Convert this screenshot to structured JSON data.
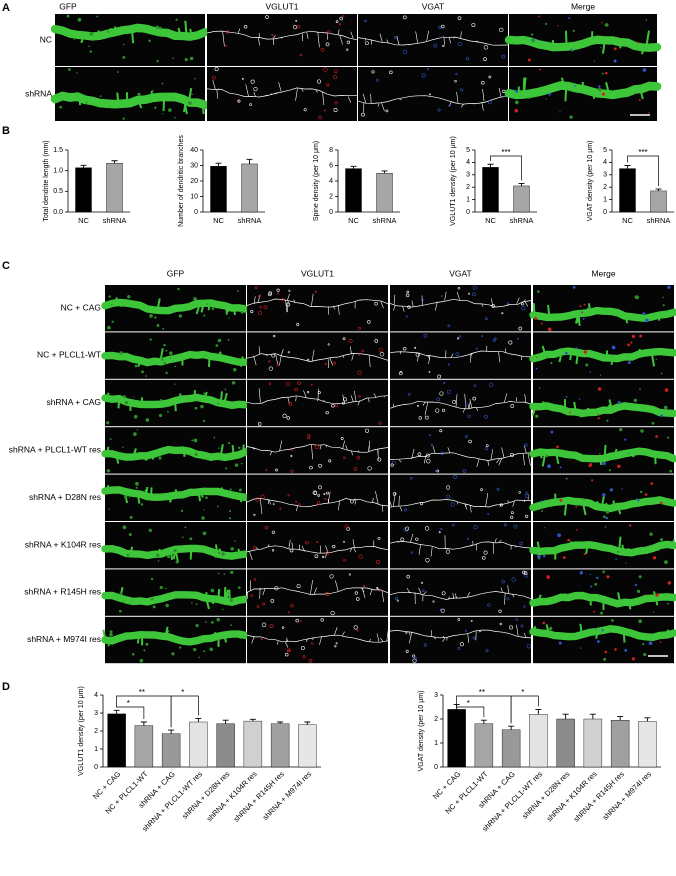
{
  "figure": {
    "panel_labels": [
      "A",
      "B",
      "C",
      "D"
    ],
    "panel_a": {
      "columns": [
        "GFP",
        "VGLUT1",
        "VGAT",
        "Merge"
      ],
      "rows": [
        "NC",
        "shRNA"
      ]
    },
    "panel_c": {
      "columns": [
        "GFP",
        "VGLUT1",
        "VGAT",
        "Merge"
      ],
      "rows": [
        "NC + CAG",
        "NC + PLCL1-WT",
        "shRNA + CAG",
        "shRNA + PLCL1-WT res",
        "shRNA + D28N res",
        "shRNA + K104R res",
        "shRNA + R145H res",
        "shRNA + M974I res"
      ]
    }
  },
  "chart_data": [
    {
      "type": "bar",
      "ylabel": "Total dendrite length (mm)",
      "categories": [
        "NC",
        "shRNA"
      ],
      "values": [
        1.07,
        1.18
      ],
      "errors": [
        0.06,
        0.06
      ],
      "colors": [
        "#000000",
        "#a6a6a6"
      ],
      "ylim": [
        0,
        1.5
      ],
      "yticks": [
        {
          "value": 0,
          "label": "0.0"
        },
        0.5,
        {
          "value": 1,
          "label": "1.0"
        },
        1.5
      ]
    },
    {
      "type": "bar",
      "ylabel": "Number of dendritic branches",
      "categories": [
        "NC",
        "shRNA"
      ],
      "values": [
        29.5,
        31
      ],
      "errors": [
        2,
        3
      ],
      "colors": [
        "#000000",
        "#a6a6a6"
      ],
      "ylim": [
        0,
        40
      ],
      "yticks": [
        0,
        10,
        20,
        30,
        40
      ]
    },
    {
      "type": "bar",
      "ylabel": "Spine density (per 10 μm)",
      "categories": [
        "NC",
        "shRNA"
      ],
      "values": [
        5.6,
        5.0
      ],
      "errors": [
        0.3,
        0.3
      ],
      "colors": [
        "#000000",
        "#a6a6a6"
      ],
      "ylim": [
        0,
        8
      ],
      "yticks": [
        0,
        2,
        4,
        6,
        8
      ]
    },
    {
      "type": "bar",
      "ylabel": "VGLUT1 density (per 10 μm)",
      "categories": [
        "NC",
        "shRNA"
      ],
      "values": [
        3.6,
        2.1
      ],
      "errors": [
        0.25,
        0.2
      ],
      "colors": [
        "#000000",
        "#a6a6a6"
      ],
      "ylim": [
        0,
        5
      ],
      "yticks": [
        0,
        1,
        2,
        3,
        4,
        5
      ],
      "significance": [
        {
          "between": [
            0,
            1
          ],
          "text": "***"
        }
      ]
    },
    {
      "type": "bar",
      "ylabel": "VGAT density (per 10 μm)",
      "categories": [
        "NC",
        "shRNA"
      ],
      "values": [
        3.5,
        1.7
      ],
      "errors": [
        0.25,
        0.15
      ],
      "colors": [
        "#000000",
        "#a6a6a6"
      ],
      "ylim": [
        0,
        5
      ],
      "yticks": [
        0,
        1,
        2,
        3,
        4,
        5
      ],
      "significance": [
        {
          "between": [
            0,
            1
          ],
          "text": "***"
        }
      ]
    },
    {
      "type": "bar",
      "ylabel": "VGLUT1 density (per 10 μm)",
      "categories": [
        "NC + CAG",
        "NC + PLCL1-WT",
        "shRNA + CAG",
        "shRNA + PLCL1-WT res",
        "shRNA + D28N res",
        "shRNA + K104R res",
        "shRNA + R145H res",
        "shRNA + M974I res"
      ],
      "values": [
        2.95,
        2.3,
        1.85,
        2.5,
        2.4,
        2.55,
        2.4,
        2.35
      ],
      "errors": [
        0.2,
        0.2,
        0.2,
        0.2,
        0.2,
        0.1,
        0.1,
        0.15
      ],
      "colors": [
        "#000000",
        "#a6a6a6",
        "#999999",
        "#e3e3e3",
        "#8c8c8c",
        "#d0d0d0",
        "#a0a0a0",
        "#e6e6e6"
      ],
      "ylim": [
        0,
        4
      ],
      "yticks": [
        0,
        1,
        2,
        3,
        4
      ],
      "significance": [
        {
          "between": [
            0,
            1
          ],
          "text": "*"
        },
        {
          "between": [
            0,
            2
          ],
          "text": "**"
        },
        {
          "between": [
            2,
            3
          ],
          "text": "*"
        }
      ]
    },
    {
      "type": "bar",
      "ylabel": "VGAT density (per 10 μm)",
      "categories": [
        "NC + CAG",
        "NC + PLCL1-WT",
        "shRNA + CAG",
        "shRNA + PLCL1-WT res",
        "shRNA + D28N res",
        "shRNA + K104R res",
        "shRNA + R145H res",
        "shRNA + M974I res"
      ],
      "values": [
        2.4,
        1.8,
        1.55,
        2.2,
        2.0,
        2.0,
        1.95,
        1.9
      ],
      "errors": [
        0.2,
        0.15,
        0.15,
        0.2,
        0.2,
        0.2,
        0.15,
        0.15
      ],
      "colors": [
        "#000000",
        "#a6a6a6",
        "#999999",
        "#e3e3e3",
        "#8c8c8c",
        "#d0d0d0",
        "#a0a0a0",
        "#e6e6e6"
      ],
      "ylim": [
        0,
        3
      ],
      "yticks": [
        0,
        1,
        2,
        3
      ],
      "significance": [
        {
          "between": [
            0,
            1
          ],
          "text": "*"
        },
        {
          "between": [
            0,
            2
          ],
          "text": "**"
        },
        {
          "between": [
            2,
            3
          ],
          "text": "*"
        }
      ]
    }
  ]
}
